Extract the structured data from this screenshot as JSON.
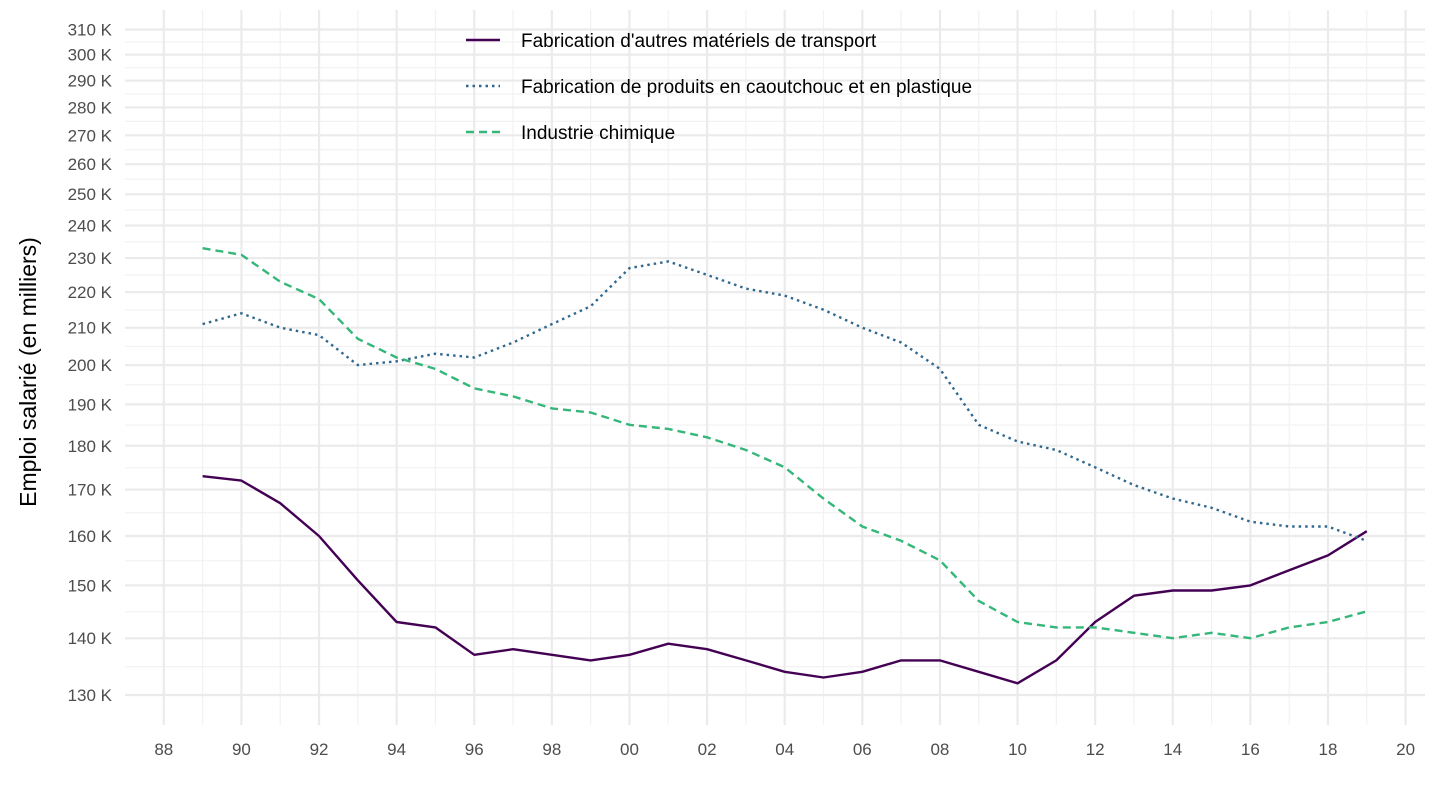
{
  "chart_data": {
    "type": "line",
    "ylabel": "Emploi salarié (en milliers)",
    "xlabel": "",
    "y_scale": "log",
    "ylim": [
      125000,
      318000
    ],
    "xlim": [
      1987,
      2020.5
    ],
    "x_ticks": [
      {
        "value": 1988,
        "label": "88"
      },
      {
        "value": 1990,
        "label": "90"
      },
      {
        "value": 1992,
        "label": "92"
      },
      {
        "value": 1994,
        "label": "94"
      },
      {
        "value": 1996,
        "label": "96"
      },
      {
        "value": 1998,
        "label": "98"
      },
      {
        "value": 2000,
        "label": "00"
      },
      {
        "value": 2002,
        "label": "02"
      },
      {
        "value": 2004,
        "label": "04"
      },
      {
        "value": 2006,
        "label": "06"
      },
      {
        "value": 2008,
        "label": "08"
      },
      {
        "value": 2010,
        "label": "10"
      },
      {
        "value": 2012,
        "label": "12"
      },
      {
        "value": 2014,
        "label": "14"
      },
      {
        "value": 2016,
        "label": "16"
      },
      {
        "value": 2018,
        "label": "18"
      },
      {
        "value": 2020,
        "label": "20"
      }
    ],
    "y_ticks": [
      {
        "value": 130000,
        "label": "130 K"
      },
      {
        "value": 140000,
        "label": "140 K"
      },
      {
        "value": 150000,
        "label": "150 K"
      },
      {
        "value": 160000,
        "label": "160 K"
      },
      {
        "value": 170000,
        "label": "170 K"
      },
      {
        "value": 180000,
        "label": "180 K"
      },
      {
        "value": 190000,
        "label": "190 K"
      },
      {
        "value": 200000,
        "label": "200 K"
      },
      {
        "value": 210000,
        "label": "210 K"
      },
      {
        "value": 220000,
        "label": "220 K"
      },
      {
        "value": 230000,
        "label": "230 K"
      },
      {
        "value": 240000,
        "label": "240 K"
      },
      {
        "value": 250000,
        "label": "250 K"
      },
      {
        "value": 260000,
        "label": "260 K"
      },
      {
        "value": 270000,
        "label": "270 K"
      },
      {
        "value": 280000,
        "label": "280 K"
      },
      {
        "value": 290000,
        "label": "290 K"
      },
      {
        "value": 300000,
        "label": "300 K"
      },
      {
        "value": 310000,
        "label": "310 K"
      }
    ],
    "grid": true,
    "legend_position": "top-center",
    "x": [
      1989,
      1990,
      1991,
      1992,
      1993,
      1994,
      1995,
      1996,
      1997,
      1998,
      1999,
      2000,
      2001,
      2002,
      2003,
      2004,
      2005,
      2006,
      2007,
      2008,
      2009,
      2010,
      2011,
      2012,
      2013,
      2014,
      2015,
      2016,
      2017,
      2018,
      2019
    ],
    "series": [
      {
        "name": "Fabrication d'autres matériels de transport",
        "color": "#440154",
        "line_style": "solid",
        "values": [
          173000,
          172000,
          167000,
          160000,
          151000,
          143000,
          142000,
          137000,
          138000,
          137000,
          136000,
          137000,
          139000,
          138000,
          136000,
          134000,
          133000,
          134000,
          136000,
          136000,
          134000,
          132000,
          136000,
          143000,
          148000,
          149000,
          149000,
          150000,
          153000,
          156000,
          161000
        ]
      },
      {
        "name": "Fabrication de produits en caoutchouc et en plastique",
        "color": "#31688E",
        "line_style": "dotted",
        "values": [
          211000,
          214000,
          210000,
          208000,
          200000,
          201000,
          203000,
          202000,
          206000,
          211000,
          216000,
          227000,
          229000,
          225000,
          221000,
          219000,
          215000,
          210000,
          206000,
          199000,
          185000,
          181000,
          179000,
          175000,
          171000,
          168000,
          166000,
          163000,
          162000,
          162000,
          159000
        ]
      },
      {
        "name": "Industrie chimique",
        "color": "#35B779",
        "line_style": "dashed",
        "values": [
          233000,
          231000,
          223000,
          218000,
          207000,
          202000,
          199000,
          194000,
          192000,
          189000,
          188000,
          185000,
          184000,
          182000,
          179000,
          175000,
          168000,
          162000,
          159000,
          155000,
          147000,
          143000,
          142000,
          142000,
          141000,
          140000,
          141000,
          140000,
          142000,
          143000,
          145000
        ]
      }
    ]
  }
}
